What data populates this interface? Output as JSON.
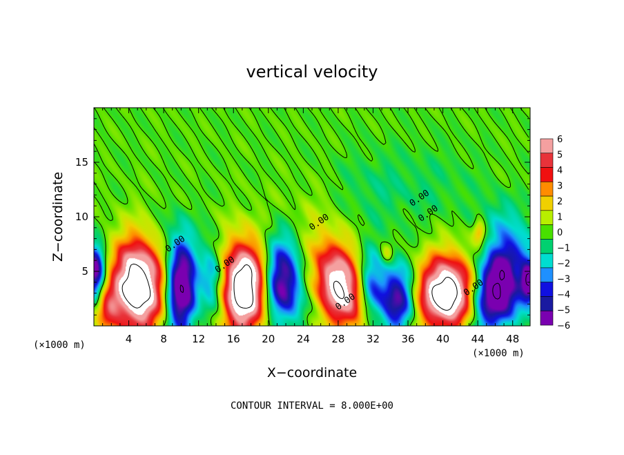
{
  "chart_data": {
    "type": "heatmap",
    "title": "vertical velocity",
    "xlabel": "X−coordinate",
    "ylabel": "Z−coordinate",
    "x_unit_left": "(×1000 m)",
    "x_unit_right": "(×1000 m)",
    "xlim": [
      0,
      50
    ],
    "ylim": [
      0,
      20
    ],
    "x_ticks": [
      4,
      8,
      12,
      16,
      20,
      24,
      28,
      32,
      36,
      40,
      44,
      48
    ],
    "y_ticks": [
      5,
      10,
      15
    ],
    "colorbar": {
      "levels": [
        6,
        5,
        4,
        3,
        2,
        1,
        0,
        -1,
        -2,
        -3,
        -4,
        -5,
        -6
      ],
      "labels": [
        "6",
        "5",
        "4",
        "3",
        "2",
        "1",
        "0",
        "−1",
        "−2",
        "−3",
        "−4",
        "−5",
        "−6"
      ],
      "colors": [
        "#f4a0a0",
        "#e8333a",
        "#f01010",
        "#ff8c00",
        "#f0d000",
        "#b8ee00",
        "#48e000",
        "#00d070",
        "#00ddd0",
        "#1e90ff",
        "#1010e0",
        "#1a1aa0",
        "#7a00b0"
      ]
    },
    "contour_labels": [
      {
        "text": "0.00",
        "x": 26,
        "y": 9.3
      },
      {
        "text": "0.00",
        "x": 37.5,
        "y": 11.5
      },
      {
        "text": "0.00",
        "x": 38.5,
        "y": 10.1
      },
      {
        "text": "0.00",
        "x": 15.2,
        "y": 5.4
      },
      {
        "text": "0.00",
        "x": 29,
        "y": 2.0
      },
      {
        "text": "0.00",
        "x": 43.7,
        "y": 3.3
      },
      {
        "text": "0.00",
        "x": 9.5,
        "y": 7.3
      }
    ],
    "cells": [
      {
        "x": 5.0,
        "y": 3.6,
        "v": 10,
        "sx": 2.1,
        "sy": 3.0
      },
      {
        "x": 17.3,
        "y": 3.5,
        "v": 10,
        "sx": 2.0,
        "sy": 3.0
      },
      {
        "x": 28.2,
        "y": 3.6,
        "v": 8,
        "sx": 2.0,
        "sy": 2.8,
        "tilt": 0.25
      },
      {
        "x": 40.6,
        "y": 2.9,
        "v": 10,
        "sx": 2.5,
        "sy": 2.4
      },
      {
        "x": 10.0,
        "y": 3.6,
        "v": -8,
        "sx": 1.2,
        "sy": 3.0
      },
      {
        "x": 21.5,
        "y": 3.9,
        "v": -7,
        "sx": 1.6,
        "sy": 2.6
      },
      {
        "x": 34.8,
        "y": 2.5,
        "v": -6,
        "sx": 1.5,
        "sy": 2.2
      },
      {
        "x": 46.3,
        "y": 3.6,
        "v": -9,
        "sx": 2.2,
        "sy": 2.8,
        "tilt": -0.3
      },
      {
        "x": 13.6,
        "y": 4.2,
        "v": -4,
        "sx": 1.0,
        "sy": 2.3
      },
      {
        "x": 31.7,
        "y": 3.5,
        "v": -4,
        "sx": 1.0,
        "sy": 2.3
      },
      {
        "x": 0.1,
        "y": 5.0,
        "v": -7,
        "sx": 0.8,
        "sy": 1.7
      },
      {
        "x": 49.9,
        "y": 4.0,
        "v": -6,
        "sx": 0.6,
        "sy": 1.2
      },
      {
        "x": 1.5,
        "y": 1.6,
        "v": 3,
        "sx": 0.9,
        "sy": 1.3
      },
      {
        "x": 44.2,
        "y": 8.6,
        "v": 3,
        "sx": 0.5,
        "sy": 0.8
      },
      {
        "x": 33.6,
        "y": 6.6,
        "v": 2,
        "sx": 0.5,
        "sy": 0.6
      },
      {
        "x": 48.2,
        "y": 4.8,
        "v": 1.5,
        "sx": 0.7,
        "sy": 0.8
      },
      {
        "x": 25.0,
        "y": 10.2,
        "v": 0.5,
        "sx": 3.0,
        "sy": 2.5
      },
      {
        "x": 32.0,
        "y": 12.5,
        "v": -0.8,
        "sx": 3.5,
        "sy": 2.5
      },
      {
        "x": 39.5,
        "y": 13.0,
        "v": -0.6,
        "sx": 4.0,
        "sy": 2.5
      },
      {
        "x": 46.5,
        "y": 9.8,
        "v": -1.3,
        "sx": 1.6,
        "sy": 1.5
      },
      {
        "x": 8.0,
        "y": 9.0,
        "v": -0.5,
        "sx": 2.0,
        "sy": 1.2
      },
      {
        "x": 20.0,
        "y": 8.0,
        "v": -0.6,
        "sx": 2.0,
        "sy": 1.2
      }
    ]
  },
  "footer": {
    "contour_interval": "CONTOUR INTERVAL = 8.000E+00"
  }
}
